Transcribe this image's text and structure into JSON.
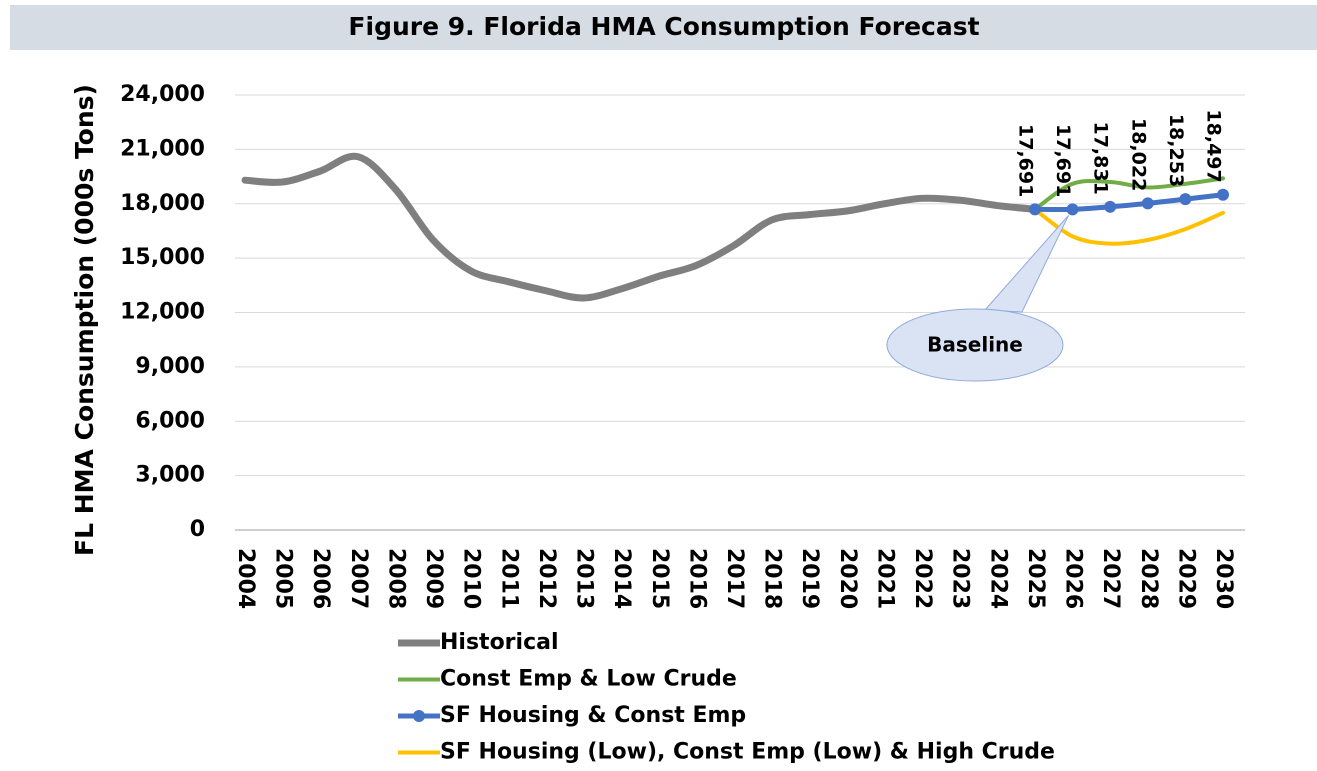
{
  "chart_data": {
    "type": "line",
    "title": "Figure 9. Florida HMA Consumption Forecast",
    "y_label": "FL HMA Consumption (000s Tons)",
    "annotation": "Baseline",
    "categories": [
      "2004",
      "2005",
      "2006",
      "2007",
      "2008",
      "2009",
      "2010",
      "2011",
      "2012",
      "2013",
      "2014",
      "2015",
      "2016",
      "2017",
      "2018",
      "2019",
      "2020",
      "2021",
      "2022",
      "2023",
      "2024",
      "2025",
      "2026",
      "2027",
      "2028",
      "2029",
      "2030"
    ],
    "ylim": [
      0,
      24000
    ],
    "yticks": [
      0,
      {
        "value": 3000,
        "label": "3,000"
      },
      {
        "value": 6000,
        "label": "6,000"
      },
      {
        "value": 9000,
        "label": "9,000"
      },
      {
        "value": 12000,
        "label": "12,000"
      },
      {
        "value": 15000,
        "label": "15,000"
      },
      {
        "value": 18000,
        "label": "18,000"
      },
      {
        "value": 21000,
        "label": "21,000"
      },
      {
        "value": 24000,
        "label": "24,000"
      }
    ],
    "grid": true,
    "series": [
      {
        "name": "Historical",
        "color": "#7f7f7f",
        "values": [
          19300,
          19200,
          19800,
          20600,
          18800,
          16000,
          14300,
          13700,
          13200,
          12800,
          13300,
          14000,
          14600,
          15700,
          17100,
          17400,
          17600,
          18000,
          18300,
          18200,
          17900,
          17691,
          null,
          null,
          null,
          null,
          null
        ]
      },
      {
        "name": "Const Emp & Low Crude",
        "color": "#70ad47",
        "values": [
          null,
          null,
          null,
          null,
          null,
          null,
          null,
          null,
          null,
          null,
          null,
          null,
          null,
          null,
          null,
          null,
          null,
          null,
          null,
          null,
          null,
          17691,
          19100,
          19200,
          18900,
          19100,
          19400
        ]
      },
      {
        "name": "SF Housing & Const Emp",
        "color": "#4472c4",
        "markers": true,
        "values": [
          null,
          null,
          null,
          null,
          null,
          null,
          null,
          null,
          null,
          null,
          null,
          null,
          null,
          null,
          null,
          null,
          null,
          null,
          null,
          null,
          null,
          17691,
          17691,
          17831,
          18022,
          18253,
          18497
        ],
        "value_labels": [
          null,
          null,
          null,
          null,
          null,
          null,
          null,
          null,
          null,
          null,
          null,
          null,
          null,
          null,
          null,
          null,
          null,
          null,
          null,
          null,
          null,
          "17,691",
          "17,691",
          "17,831",
          "18,022",
          "18,253",
          "18,497"
        ]
      },
      {
        "name": "SF Housing (Low), Const Emp (Low) & High Crude",
        "color": "#ffc000",
        "values": [
          null,
          null,
          null,
          null,
          null,
          null,
          null,
          null,
          null,
          null,
          null,
          null,
          null,
          null,
          null,
          null,
          null,
          null,
          null,
          null,
          null,
          17691,
          16200,
          15800,
          16000,
          16600,
          17500
        ]
      }
    ]
  }
}
